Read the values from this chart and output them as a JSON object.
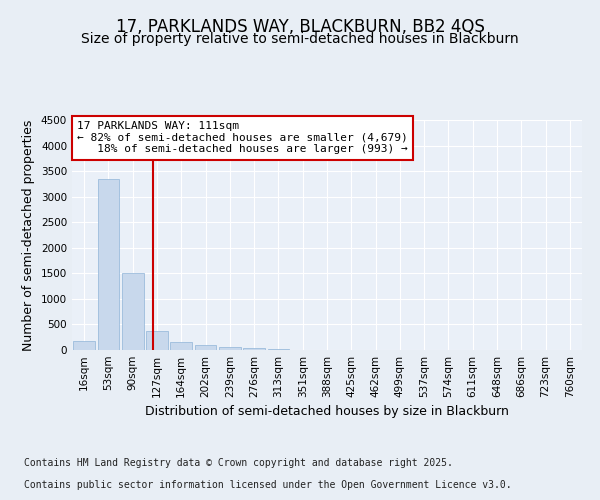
{
  "title_line1": "17, PARKLANDS WAY, BLACKBURN, BB2 4QS",
  "title_line2": "Size of property relative to semi-detached houses in Blackburn",
  "xlabel": "Distribution of semi-detached houses by size in Blackburn",
  "ylabel": "Number of semi-detached properties",
  "categories": [
    "16sqm",
    "53sqm",
    "90sqm",
    "127sqm",
    "164sqm",
    "202sqm",
    "239sqm",
    "276sqm",
    "313sqm",
    "351sqm",
    "388sqm",
    "425sqm",
    "462sqm",
    "499sqm",
    "537sqm",
    "574sqm",
    "611sqm",
    "648sqm",
    "686sqm",
    "723sqm",
    "760sqm"
  ],
  "values": [
    185,
    3350,
    1500,
    370,
    155,
    90,
    65,
    40,
    20,
    5,
    0,
    0,
    0,
    0,
    0,
    0,
    0,
    0,
    0,
    0,
    0
  ],
  "bar_color": "#c8d8ec",
  "bar_edge_color": "#8fb4d8",
  "annotation_text": "17 PARKLANDS WAY: 111sqm\n← 82% of semi-detached houses are smaller (4,679)\n   18% of semi-detached houses are larger (993) →",
  "vline_x_index": 2.82,
  "vline_color": "#cc0000",
  "box_color": "#cc0000",
  "ylim": [
    0,
    4500
  ],
  "yticks": [
    0,
    500,
    1000,
    1500,
    2000,
    2500,
    3000,
    3500,
    4000,
    4500
  ],
  "footer_line1": "Contains HM Land Registry data © Crown copyright and database right 2025.",
  "footer_line2": "Contains public sector information licensed under the Open Government Licence v3.0.",
  "title_fontsize": 12,
  "subtitle_fontsize": 10,
  "axis_label_fontsize": 9,
  "tick_fontsize": 7.5,
  "annotation_fontsize": 8,
  "footer_fontsize": 7,
  "background_color": "#e8eef5",
  "plot_background_color": "#eaf0f8",
  "grid_color": "#ffffff"
}
